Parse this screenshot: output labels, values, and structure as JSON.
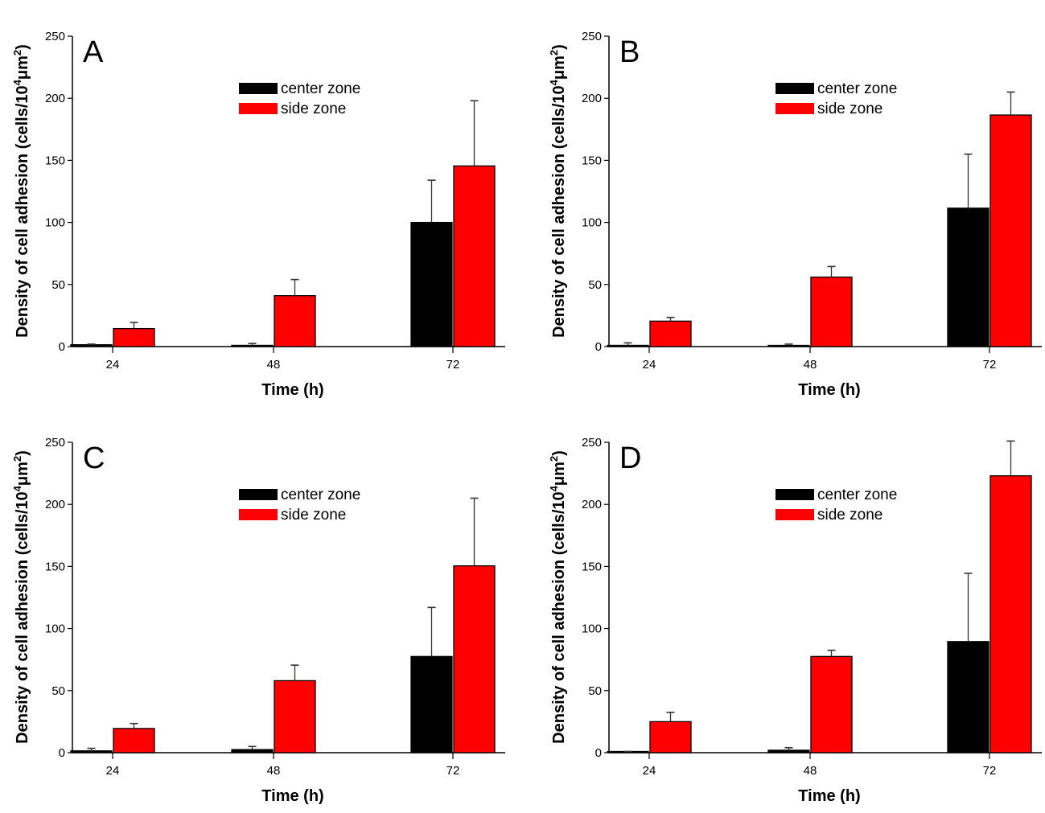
{
  "figure": {
    "colors": {
      "center": "#000000",
      "side": "#ff0000",
      "axis": "#000000",
      "error_bar": "#333333"
    }
  },
  "chart_data": [
    {
      "type": "bar",
      "panel": "A",
      "title": "",
      "xlabel": "Time (h)",
      "ylabel": "Density of cell adhesion (cells/10",
      "ylabel_sup1": "4",
      "ylabel_mid": "μm",
      "ylabel_sup2": "2",
      "ylabel_end": ")",
      "categories": [
        "24",
        "48",
        "72"
      ],
      "ylim": [
        0,
        250
      ],
      "yticks": [
        "0",
        "50",
        "100",
        "150",
        "200",
        "250"
      ],
      "ytick_values": [
        0,
        50,
        100,
        150,
        200,
        250
      ],
      "grid": false,
      "legend_position": "top-center",
      "series": [
        {
          "name": "center zone",
          "color": "#000000",
          "values": [
            1.5,
            1.0,
            100.0
          ],
          "error": [
            0.5,
            1.5,
            34.0
          ]
        },
        {
          "name": "side zone",
          "color": "#ff0000",
          "values": [
            14.5,
            41.0,
            145.5
          ],
          "error": [
            5.0,
            13.0,
            52.5
          ]
        }
      ]
    },
    {
      "type": "bar",
      "panel": "B",
      "title": "",
      "xlabel": "Time (h)",
      "ylabel": "Density of cell adhesion (cells/10",
      "ylabel_sup1": "4",
      "ylabel_mid": "μm",
      "ylabel_sup2": "2",
      "ylabel_end": ")",
      "categories": [
        "24",
        "48",
        "72"
      ],
      "ylim": [
        0,
        250
      ],
      "yticks": [
        "0",
        "50",
        "100",
        "150",
        "200",
        "250"
      ],
      "ytick_values": [
        0,
        50,
        100,
        150,
        200,
        250
      ],
      "grid": false,
      "legend_position": "top-center",
      "series": [
        {
          "name": "center zone",
          "color": "#000000",
          "values": [
            1.0,
            0.5,
            111.5
          ],
          "error": [
            2.0,
            1.5,
            43.5
          ]
        },
        {
          "name": "side zone",
          "color": "#ff0000",
          "values": [
            20.5,
            56.0,
            186.5
          ],
          "error": [
            3.0,
            8.5,
            18.5
          ]
        }
      ]
    },
    {
      "type": "bar",
      "panel": "C",
      "title": "",
      "xlabel": "Time (h)",
      "ylabel": "Density of cell adhesion (cells/10",
      "ylabel_sup1": "4",
      "ylabel_mid": "μm",
      "ylabel_sup2": "2",
      "ylabel_end": ")",
      "categories": [
        "24",
        "48",
        "72"
      ],
      "ylim": [
        0,
        250
      ],
      "yticks": [
        "0",
        "50",
        "100",
        "150",
        "200",
        "250"
      ],
      "ytick_values": [
        0,
        50,
        100,
        150,
        200,
        250
      ],
      "grid": false,
      "legend_position": "top-center",
      "series": [
        {
          "name": "center zone",
          "color": "#000000",
          "values": [
            1.5,
            2.5,
            77.5
          ],
          "error": [
            2.0,
            2.5,
            39.5
          ]
        },
        {
          "name": "side zone",
          "color": "#ff0000",
          "values": [
            19.5,
            58.0,
            150.5
          ],
          "error": [
            4.0,
            12.5,
            54.5
          ]
        }
      ]
    },
    {
      "type": "bar",
      "panel": "D",
      "title": "",
      "xlabel": "Time (h)",
      "ylabel": "Density of cell adhesion (cells/10",
      "ylabel_sup1": "4",
      "ylabel_mid": "μm",
      "ylabel_sup2": "2",
      "ylabel_end": ")",
      "categories": [
        "24",
        "48",
        "72"
      ],
      "ylim": [
        0,
        250
      ],
      "yticks": [
        "0",
        "50",
        "100",
        "150",
        "200",
        "250"
      ],
      "ytick_values": [
        0,
        50,
        100,
        150,
        200,
        250
      ],
      "grid": false,
      "legend_position": "top-center",
      "series": [
        {
          "name": "center zone",
          "color": "#000000",
          "values": [
            0.5,
            2.0,
            89.5
          ],
          "error": [
            0.5,
            2.0,
            55.0
          ]
        },
        {
          "name": "side zone",
          "color": "#ff0000",
          "values": [
            25.0,
            77.5,
            223.0
          ],
          "error": [
            7.5,
            5.0,
            28.0
          ]
        }
      ]
    }
  ]
}
